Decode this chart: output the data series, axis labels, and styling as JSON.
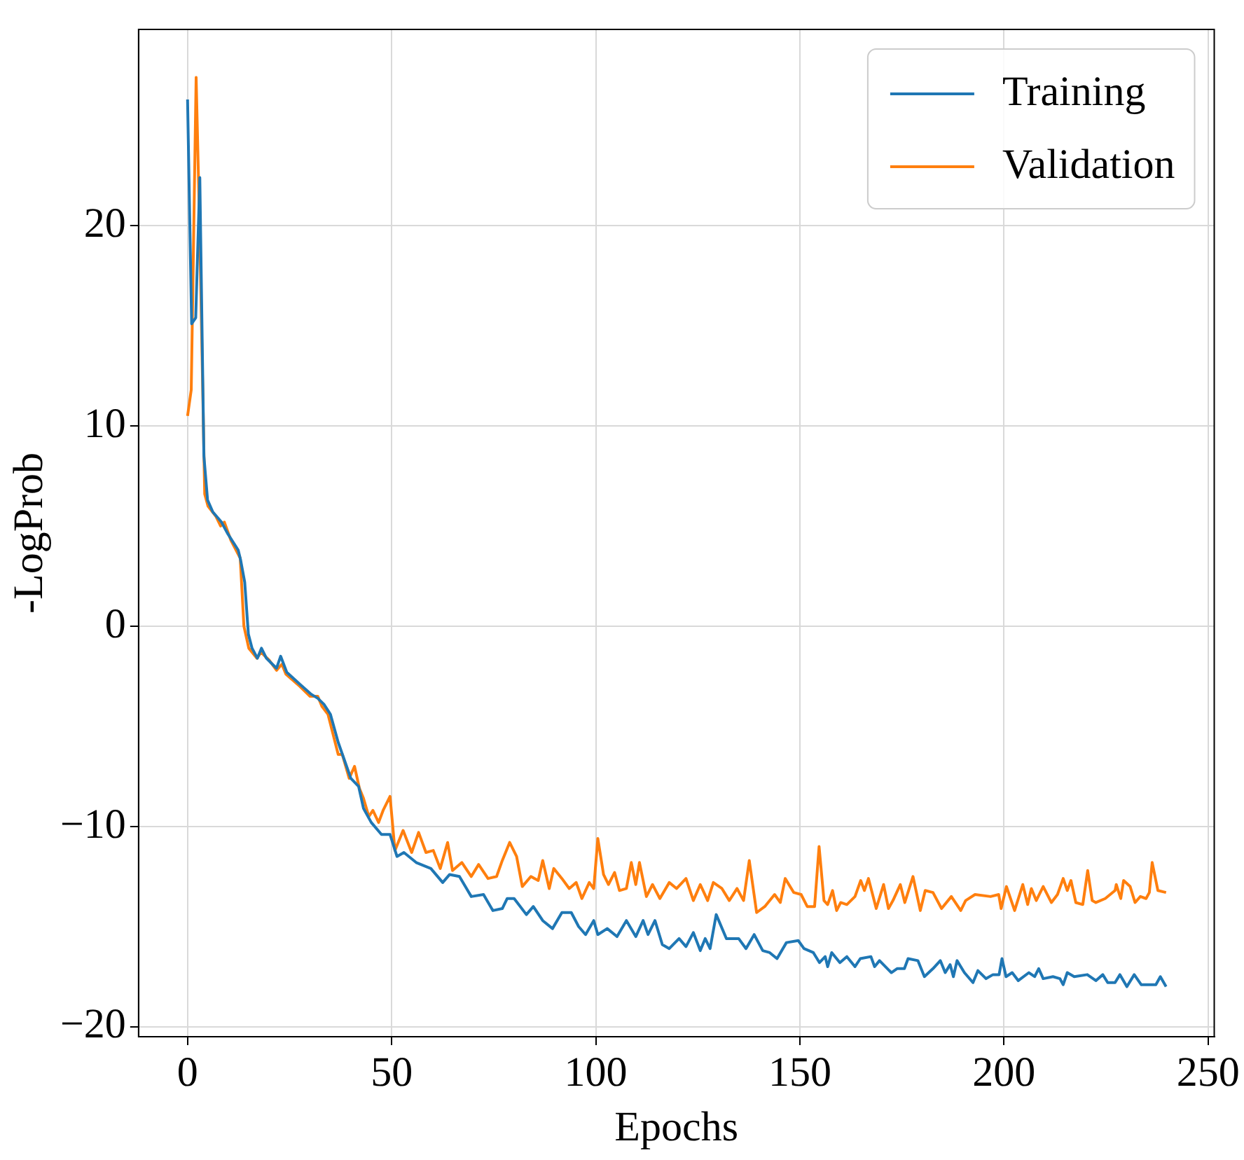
{
  "chart_data": {
    "type": "line",
    "xlabel": "Epochs",
    "ylabel": "-LogProb",
    "xlim": [
      -12,
      251.5
    ],
    "ylim": [
      -20.5,
      29.8
    ],
    "xticks": [
      0,
      50,
      100,
      150,
      200,
      250
    ],
    "yticks": [
      {
        "value": -20,
        "label": "−20"
      },
      {
        "value": -10,
        "label": "−10"
      },
      0,
      10,
      20
    ],
    "grid": true,
    "legend": "top right",
    "line_style": "solid",
    "marker": "none",
    "series": [
      {
        "name": "Training",
        "color": "#1f77b4",
        "x": [
          0,
          1,
          2,
          3,
          4,
          4.9,
          6.2,
          8.3,
          9.9,
          12.4,
          13,
          14,
          14.9,
          15.8,
          17.1,
          18.1,
          19.3,
          21.8,
          22.8,
          24.3,
          27.5,
          30.3,
          31.9,
          33.4,
          35,
          36.9,
          38.1,
          40,
          41.9,
          43.1,
          45,
          47.5,
          49.6,
          51.3,
          53,
          56,
          59.6,
          62.5,
          64.2,
          66.6,
          69.5,
          72.5,
          74.8,
          77.1,
          78.3,
          80,
          83,
          84.7,
          87,
          89.4,
          91.7,
          94,
          95.8,
          97.5,
          99.5,
          100.5,
          102.8,
          105.2,
          107.5,
          109.8,
          111.6,
          112.8,
          114.5,
          116.3,
          118,
          120.4,
          122.1,
          123.9,
          125.6,
          126.8,
          128,
          129.5,
          132,
          135,
          136.8,
          138.8,
          140.9,
          142.6,
          144.4,
          146.7,
          149.6,
          151,
          153.3,
          154.8,
          156.2,
          156.8,
          157.8,
          159.8,
          161.5,
          163.5,
          164.8,
          167.4,
          168.3,
          169.5,
          172.4,
          173.8,
          175.6,
          176.5,
          178.9,
          180.5,
          182.6,
          184.4,
          185.6,
          186.8,
          187.6,
          188.5,
          190.3,
          192.4,
          193.6,
          195.6,
          197.3,
          198.8,
          199.5,
          200.5,
          202,
          203.5,
          206.1,
          207.5,
          208.5,
          209.6,
          212,
          213.7,
          214.5,
          215.5,
          217.2,
          220.4,
          222.5,
          224.2,
          225.4,
          227.2,
          228.4,
          230.1,
          231.9,
          233.6,
          235.4,
          237.2,
          238.3,
          239.7
        ],
        "values": [
          26.3,
          15.1,
          15.4,
          22.4,
          8.5,
          6.3,
          5.7,
          5.2,
          4.6,
          3.8,
          3.3,
          2.2,
          -0.4,
          -1.1,
          -1.6,
          -1.1,
          -1.6,
          -2.1,
          -1.5,
          -2.3,
          -2.9,
          -3.4,
          -3.6,
          -3.9,
          -4.4,
          -5.8,
          -6.5,
          -7.6,
          -8,
          -9.1,
          -9.8,
          -10.4,
          -10.4,
          -11.5,
          -11.3,
          -11.8,
          -12.1,
          -12.8,
          -12.4,
          -12.5,
          -13.5,
          -13.4,
          -14.2,
          -14.1,
          -13.6,
          -13.6,
          -14.4,
          -14,
          -14.7,
          -15.1,
          -14.3,
          -14.3,
          -15,
          -15.4,
          -14.7,
          -15.4,
          -15.1,
          -15.5,
          -14.7,
          -15.5,
          -14.7,
          -15.4,
          -14.7,
          -15.9,
          -16.1,
          -15.6,
          -16,
          -15.3,
          -16.2,
          -15.6,
          -16.1,
          -14.4,
          -15.6,
          -15.6,
          -16.1,
          -15.4,
          -16.2,
          -16.3,
          -16.6,
          -15.8,
          -15.7,
          -16.1,
          -16.3,
          -16.8,
          -16.5,
          -17,
          -16.3,
          -16.8,
          -16.5,
          -17,
          -16.6,
          -16.5,
          -17,
          -16.7,
          -17.3,
          -17.1,
          -17.1,
          -16.6,
          -16.7,
          -17.5,
          -17.1,
          -16.7,
          -17.3,
          -16.9,
          -17.5,
          -16.7,
          -17.3,
          -17.8,
          -17.2,
          -17.6,
          -17.4,
          -17.4,
          -16.6,
          -17.5,
          -17.3,
          -17.7,
          -17.3,
          -17.5,
          -17.1,
          -17.6,
          -17.5,
          -17.6,
          -17.9,
          -17.3,
          -17.5,
          -17.4,
          -17.7,
          -17.4,
          -17.8,
          -17.8,
          -17.4,
          -18,
          -17.4,
          -17.9,
          -17.9,
          -17.9,
          -17.5,
          -18
        ]
      },
      {
        "name": "Validation",
        "color": "#ff7f0e",
        "x": [
          0,
          0.9,
          2.1,
          3,
          4.2,
          5,
          6.9,
          8.1,
          9,
          10.6,
          12.9,
          13.8,
          15,
          17,
          18,
          20,
          21.8,
          23.1,
          24.1,
          27.5,
          30,
          31.9,
          32.9,
          34.4,
          36.9,
          37.9,
          39.6,
          40.9,
          42.1,
          43.1,
          44.4,
          45.4,
          46.8,
          47.9,
          49.6,
          50.8,
          52.8,
          54.9,
          56.6,
          58.4,
          60.2,
          61.9,
          63.7,
          64.9,
          67.2,
          69.5,
          71.3,
          73.6,
          75.7,
          77.1,
          78.9,
          80.6,
          82,
          84.1,
          85.9,
          87,
          88.6,
          89.7,
          91.7,
          93.5,
          95.2,
          96.6,
          98.4,
          99.5,
          100.5,
          101.9,
          103.1,
          104.6,
          105.8,
          107.5,
          108.7,
          109.8,
          110.7,
          112.4,
          113.9,
          115.7,
          118,
          119.8,
          122.1,
          123.9,
          125.6,
          127.4,
          128.8,
          130.9,
          132.7,
          134.6,
          136.2,
          137.6,
          139.4,
          141.4,
          143.8,
          145.2,
          146.4,
          148.5,
          150.3,
          151.8,
          153.6,
          154.7,
          155.9,
          156.8,
          158,
          159,
          160,
          161.5,
          163.5,
          164.9,
          165.8,
          166.8,
          168.7,
          170.5,
          171.7,
          172.8,
          174.6,
          175.7,
          177.7,
          179.5,
          180.7,
          182.6,
          184.7,
          187.1,
          189.4,
          190.6,
          192.9,
          196.7,
          198.7,
          199.3,
          200.6,
          202.6,
          204.6,
          205.8,
          206.7,
          207.9,
          209.6,
          211.6,
          213.1,
          214.5,
          215.5,
          216.4,
          217.6,
          219.3,
          220.5,
          221.6,
          222.5,
          224.8,
          227.2,
          227.5,
          228.6,
          229.3,
          230.9,
          232.1,
          233.4,
          234.8,
          235.6,
          236.3,
          237.7,
          239.7
        ],
        "values": [
          10.5,
          11.8,
          27.4,
          19.5,
          6.6,
          6,
          5.5,
          5,
          5.2,
          4.3,
          3.4,
          0,
          -1.1,
          -1.6,
          -1.3,
          -1.7,
          -2.2,
          -1.9,
          -2.4,
          -3,
          -3.5,
          -3.5,
          -4,
          -4.4,
          -6.4,
          -6.4,
          -7.6,
          -7,
          -8.1,
          -8.6,
          -9.5,
          -9.2,
          -9.8,
          -9.2,
          -8.5,
          -11.2,
          -10.2,
          -11.3,
          -10.3,
          -11.3,
          -11.2,
          -12.1,
          -10.8,
          -12.2,
          -11.8,
          -12.5,
          -11.9,
          -12.6,
          -12.5,
          -11.7,
          -10.8,
          -11.5,
          -13,
          -12.5,
          -12.7,
          -11.7,
          -13.1,
          -12.1,
          -12.6,
          -13.1,
          -12.8,
          -13.6,
          -12.8,
          -13.1,
          -10.6,
          -12.4,
          -12.9,
          -12.3,
          -13.2,
          -13.1,
          -11.8,
          -12.9,
          -11.8,
          -13.5,
          -12.9,
          -13.6,
          -12.8,
          -13.1,
          -12.6,
          -13.7,
          -12.9,
          -13.7,
          -12.8,
          -13.1,
          -13.7,
          -13.1,
          -13.7,
          -11.7,
          -14.3,
          -14,
          -13.4,
          -13.8,
          -12.6,
          -13.3,
          -13.4,
          -14,
          -14,
          -11,
          -13.7,
          -13.9,
          -13.2,
          -14.2,
          -13.8,
          -13.9,
          -13.5,
          -12.7,
          -13.2,
          -12.6,
          -14.1,
          -12.9,
          -14.1,
          -13.7,
          -12.9,
          -13.8,
          -12.5,
          -14.2,
          -13.2,
          -13.3,
          -14.1,
          -13.5,
          -14.2,
          -13.7,
          -13.4,
          -13.5,
          -13.4,
          -14.1,
          -13,
          -14.2,
          -12.9,
          -13.9,
          -13.1,
          -13.7,
          -13,
          -13.8,
          -13.4,
          -12.6,
          -13.2,
          -12.7,
          -13.8,
          -13.9,
          -12.2,
          -13.7,
          -13.8,
          -13.6,
          -13.2,
          -12.9,
          -13.6,
          -12.7,
          -13,
          -13.8,
          -13.5,
          -13.6,
          -13.3,
          -11.8,
          -13.2,
          -13.3
        ]
      }
    ]
  }
}
